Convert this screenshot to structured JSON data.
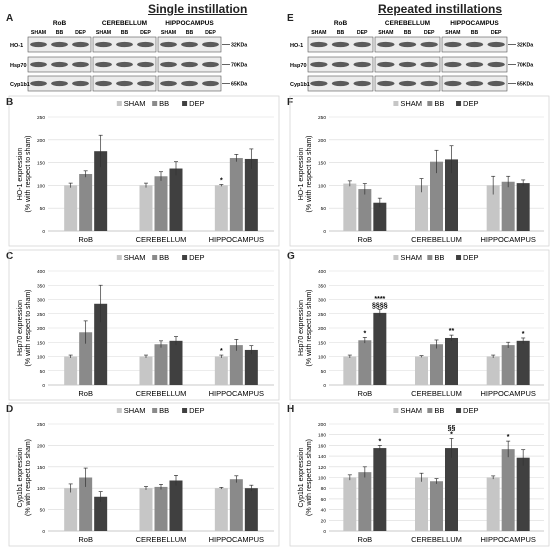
{
  "titles": {
    "left": "Single instillation",
    "right": "Repeated instillations"
  },
  "panel_letters": [
    "A",
    "B",
    "C",
    "D",
    "E",
    "F",
    "G",
    "H"
  ],
  "colors": {
    "SHAM": "#c6c6c6",
    "BB": "#8a8a8a",
    "DEP": "#404040",
    "blot_bg": "#ececec",
    "band": "#2b2b2b",
    "grid": "#d9d9d9",
    "axis": "#bfbfbf"
  },
  "blots": [
    {
      "id": "A",
      "regions": [
        "RoB",
        "CEREBELLUM",
        "HIPPOCAMPUS"
      ],
      "lanes": [
        "SHAM",
        "BB",
        "DEP"
      ],
      "rows": [
        "HO-1",
        "Hsp70",
        "Cyp1b1"
      ],
      "sizes": [
        "32KDa",
        "70KDa",
        "65KDa"
      ]
    },
    {
      "id": "E",
      "regions": [
        "RoB",
        "CEREBELLUM",
        "HIPPOCAMPUS"
      ],
      "lanes": [
        "SHAM",
        "BB",
        "DEP"
      ],
      "rows": [
        "HO-1",
        "Hsp70",
        "Cyp1b1"
      ],
      "sizes": [
        "32KDa",
        "70KDa",
        "65KDa"
      ]
    }
  ],
  "chart_data": [
    {
      "panel": "B",
      "type": "bar",
      "categories": [
        "RoB",
        "CEREBELLUM",
        "HIPPOCAMPUS"
      ],
      "series": [
        {
          "name": "SHAM",
          "values": [
            100,
            100,
            100
          ],
          "err": [
            5,
            5,
            2
          ]
        },
        {
          "name": "BB",
          "values": [
            125,
            120,
            160
          ],
          "err": [
            7,
            10,
            8
          ]
        },
        {
          "name": "DEP",
          "values": [
            175,
            137,
            158
          ],
          "err": [
            35,
            15,
            22
          ]
        }
      ],
      "sig": [
        [
          "",
          "",
          "*"
        ],
        [
          "",
          "",
          ""
        ],
        [
          "",
          "",
          ""
        ]
      ],
      "ylabel": "HO-1 expression\n(% with respect to sham)",
      "ylim": [
        0,
        250
      ],
      "yticks": [
        0,
        50,
        100,
        150,
        200,
        250
      ]
    },
    {
      "panel": "C",
      "type": "bar",
      "categories": [
        "RoB",
        "CEREBELLUM",
        "HIPPOCAMPUS"
      ],
      "series": [
        {
          "name": "SHAM",
          "values": [
            100,
            100,
            100
          ],
          "err": [
            5,
            5,
            5
          ]
        },
        {
          "name": "BB",
          "values": [
            185,
            143,
            140
          ],
          "err": [
            40,
            12,
            20
          ]
        },
        {
          "name": "DEP",
          "values": [
            285,
            155,
            123
          ],
          "err": [
            65,
            15,
            15
          ]
        }
      ],
      "sig": [
        [
          "",
          "",
          "*"
        ],
        [
          "",
          "",
          ""
        ],
        [
          "",
          "",
          ""
        ]
      ],
      "ylabel": "Hsp70 expression\n(% with respect to sham)",
      "ylim": [
        0,
        400
      ],
      "yticks": [
        0,
        50,
        100,
        150,
        200,
        250,
        300,
        350,
        400
      ]
    },
    {
      "panel": "D",
      "type": "bar",
      "categories": [
        "RoB",
        "CEREBELLUM",
        "HIPPOCAMPUS"
      ],
      "series": [
        {
          "name": "SHAM",
          "values": [
            100,
            100,
            100
          ],
          "err": [
            10,
            4,
            2
          ]
        },
        {
          "name": "BB",
          "values": [
            125,
            103,
            121
          ],
          "err": [
            22,
            6,
            8
          ]
        },
        {
          "name": "DEP",
          "values": [
            80,
            118,
            100
          ],
          "err": [
            12,
            12,
            7
          ]
        }
      ],
      "sig": [
        [
          "",
          "",
          ""
        ],
        [
          "",
          "",
          ""
        ],
        [
          "",
          "",
          ""
        ]
      ],
      "ylabel": "Cyp1b1 expression\n(% with respect to sham)",
      "ylim": [
        0,
        250
      ],
      "yticks": [
        0,
        50,
        100,
        150,
        200,
        250
      ]
    },
    {
      "panel": "F",
      "type": "bar",
      "categories": [
        "RoB",
        "CEREBELLUM",
        "HIPPOCAMPUS"
      ],
      "series": [
        {
          "name": "SHAM",
          "values": [
            104,
            100,
            100
          ],
          "err": [
            6,
            15,
            20
          ]
        },
        {
          "name": "BB",
          "values": [
            92,
            152,
            108
          ],
          "err": [
            12,
            25,
            12
          ]
        },
        {
          "name": "DEP",
          "values": [
            62,
            157,
            105
          ],
          "err": [
            10,
            30,
            7
          ]
        }
      ],
      "sig": [
        [
          "",
          "",
          ""
        ],
        [
          "",
          "",
          ""
        ],
        [
          "",
          "",
          ""
        ]
      ],
      "ylabel": "HO-1 expression\n(% with respect to sham)",
      "ylim": [
        0,
        250
      ],
      "yticks": [
        0,
        50,
        100,
        150,
        200,
        250
      ]
    },
    {
      "panel": "G",
      "type": "bar",
      "categories": [
        "RoB",
        "CEREBELLUM",
        "HIPPOCAMPUS"
      ],
      "series": [
        {
          "name": "SHAM",
          "values": [
            100,
            100,
            100
          ],
          "err": [
            5,
            3,
            5
          ]
        },
        {
          "name": "BB",
          "values": [
            157,
            143,
            140
          ],
          "err": [
            10,
            15,
            10
          ]
        },
        {
          "name": "DEP",
          "values": [
            253,
            165,
            155
          ],
          "err": [
            12,
            10,
            10
          ]
        }
      ],
      "sig": [
        [
          "",
          "",
          ""
        ],
        [
          "*",
          "",
          ""
        ],
        [
          "****\n§§§§",
          "**",
          "*"
        ]
      ],
      "ylabel": "Hsp70 expression\n(% with respect to sham)",
      "ylim": [
        0,
        400
      ],
      "yticks": [
        0,
        50,
        100,
        150,
        200,
        250,
        300,
        350,
        400
      ]
    },
    {
      "panel": "H",
      "type": "bar",
      "categories": [
        "RoB",
        "CEREBELLUM",
        "HIPPOCAMPUS"
      ],
      "series": [
        {
          "name": "SHAM",
          "values": [
            100,
            100,
            100
          ],
          "err": [
            5,
            8,
            3
          ]
        },
        {
          "name": "BB",
          "values": [
            110,
            93,
            153
          ],
          "err": [
            10,
            5,
            15
          ]
        },
        {
          "name": "DEP",
          "values": [
            155,
            155,
            137
          ],
          "err": [
            5,
            18,
            15
          ]
        }
      ],
      "sig": [
        [
          "",
          "",
          ""
        ],
        [
          "",
          "",
          "*"
        ],
        [
          "*",
          "§§\n*",
          ""
        ]
      ],
      "ylabel": "Cyp1b1 expression\n(% with respect to sham)",
      "ylim": [
        0,
        200
      ],
      "yticks": [
        0,
        20,
        40,
        60,
        80,
        100,
        120,
        140,
        160,
        180,
        200
      ]
    }
  ]
}
